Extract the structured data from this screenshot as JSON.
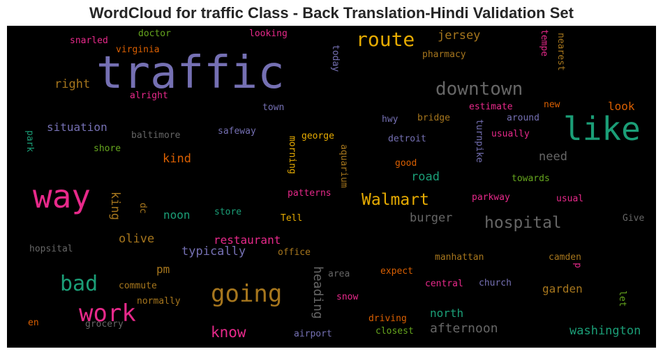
{
  "title": "WordCloud for traffic Class - Back Translation-Hindi Validation Set",
  "chart_data": {
    "type": "wordcloud",
    "background": "#000000",
    "colormap": "Dark2",
    "words": [
      {
        "text": "traffic",
        "color": "#7570b3"
      },
      {
        "text": "like",
        "color": "#1b9e77"
      },
      {
        "text": "way",
        "color": "#e7298a"
      },
      {
        "text": "going",
        "color": "#a6761d"
      },
      {
        "text": "work",
        "color": "#e7298a"
      },
      {
        "text": "route",
        "color": "#e6ab02"
      },
      {
        "text": "downtown",
        "color": "#666666"
      },
      {
        "text": "Walmart",
        "color": "#e6ab02"
      },
      {
        "text": "hospital",
        "color": "#666666"
      },
      {
        "text": "bad",
        "color": "#1b9e77"
      },
      {
        "text": "know",
        "color": "#e7298a"
      },
      {
        "text": "heading",
        "color": "#666666"
      },
      {
        "text": "washington",
        "color": "#1b9e77"
      },
      {
        "text": "afternoon",
        "color": "#666666"
      },
      {
        "text": "jersey",
        "color": "#a6761d"
      },
      {
        "text": "right",
        "color": "#a6761d"
      },
      {
        "text": "situation",
        "color": "#7570b3"
      },
      {
        "text": "need",
        "color": "#666666"
      },
      {
        "text": "road",
        "color": "#1b9e77"
      },
      {
        "text": "kind",
        "color": "#d95f02"
      },
      {
        "text": "restaurant",
        "color": "#e7298a"
      },
      {
        "text": "typically",
        "color": "#7570b3"
      },
      {
        "text": "olive",
        "color": "#a6761d"
      },
      {
        "text": "burger",
        "color": "#666666"
      },
      {
        "text": "garden",
        "color": "#a6761d"
      },
      {
        "text": "north",
        "color": "#1b9e77"
      },
      {
        "text": "noon",
        "color": "#1b9e77"
      },
      {
        "text": "king",
        "color": "#a6761d"
      },
      {
        "text": "pm",
        "color": "#a6761d"
      },
      {
        "text": "look",
        "color": "#d95f02"
      },
      {
        "text": "doctor",
        "color": "#66a61e"
      },
      {
        "text": "looking",
        "color": "#e7298a"
      },
      {
        "text": "snarled",
        "color": "#e7298a"
      },
      {
        "text": "virginia",
        "color": "#d95f02"
      },
      {
        "text": "alright",
        "color": "#e7298a"
      },
      {
        "text": "today",
        "color": "#7570b3"
      },
      {
        "text": "pharmacy",
        "color": "#a6761d"
      },
      {
        "text": "tempe",
        "color": "#e7298a"
      },
      {
        "text": "nearest",
        "color": "#a6761d"
      },
      {
        "text": "town",
        "color": "#7570b3"
      },
      {
        "text": "baltimore",
        "color": "#666666"
      },
      {
        "text": "safeway",
        "color": "#7570b3"
      },
      {
        "text": "shore",
        "color": "#66a61e"
      },
      {
        "text": "park",
        "color": "#1b9e77"
      },
      {
        "text": "george",
        "color": "#e6ab02"
      },
      {
        "text": "morning",
        "color": "#e6ab02"
      },
      {
        "text": "aquarium",
        "color": "#a6761d"
      },
      {
        "text": "detroit",
        "color": "#7570b3"
      },
      {
        "text": "hwy",
        "color": "#7570b3"
      },
      {
        "text": "bridge",
        "color": "#a6761d"
      },
      {
        "text": "estimate",
        "color": "#e7298a"
      },
      {
        "text": "new",
        "color": "#d95f02"
      },
      {
        "text": "around",
        "color": "#7570b3"
      },
      {
        "text": "usually",
        "color": "#e7298a"
      },
      {
        "text": "turnpike",
        "color": "#7570b3"
      },
      {
        "text": "good",
        "color": "#d95f02"
      },
      {
        "text": "towards",
        "color": "#66a61e"
      },
      {
        "text": "patterns",
        "color": "#e7298a"
      },
      {
        "text": "dc",
        "color": "#a6761d"
      },
      {
        "text": "store",
        "color": "#1b9e77"
      },
      {
        "text": "Tell",
        "color": "#e6ab02"
      },
      {
        "text": "parkway",
        "color": "#e7298a"
      },
      {
        "text": "usual",
        "color": "#e7298a"
      },
      {
        "text": "Give",
        "color": "#666666"
      },
      {
        "text": "hopsital",
        "color": "#666666"
      },
      {
        "text": "office",
        "color": "#a6761d"
      },
      {
        "text": "manhattan",
        "color": "#a6761d"
      },
      {
        "text": "camden",
        "color": "#a6761d"
      },
      {
        "text": "p",
        "color": "#e7298a"
      },
      {
        "text": "area",
        "color": "#666666"
      },
      {
        "text": "expect",
        "color": "#d95f02"
      },
      {
        "text": "central",
        "color": "#e7298a"
      },
      {
        "text": "church",
        "color": "#7570b3"
      },
      {
        "text": "commute",
        "color": "#a6761d"
      },
      {
        "text": "normally",
        "color": "#a6761d"
      },
      {
        "text": "snow",
        "color": "#e7298a"
      },
      {
        "text": "let",
        "color": "#66a61e"
      },
      {
        "text": "en",
        "color": "#d95f02"
      },
      {
        "text": "grocery",
        "color": "#666666"
      },
      {
        "text": "airport",
        "color": "#7570b3"
      },
      {
        "text": "driving",
        "color": "#d95f02"
      },
      {
        "text": "closest",
        "color": "#66a61e"
      }
    ]
  }
}
